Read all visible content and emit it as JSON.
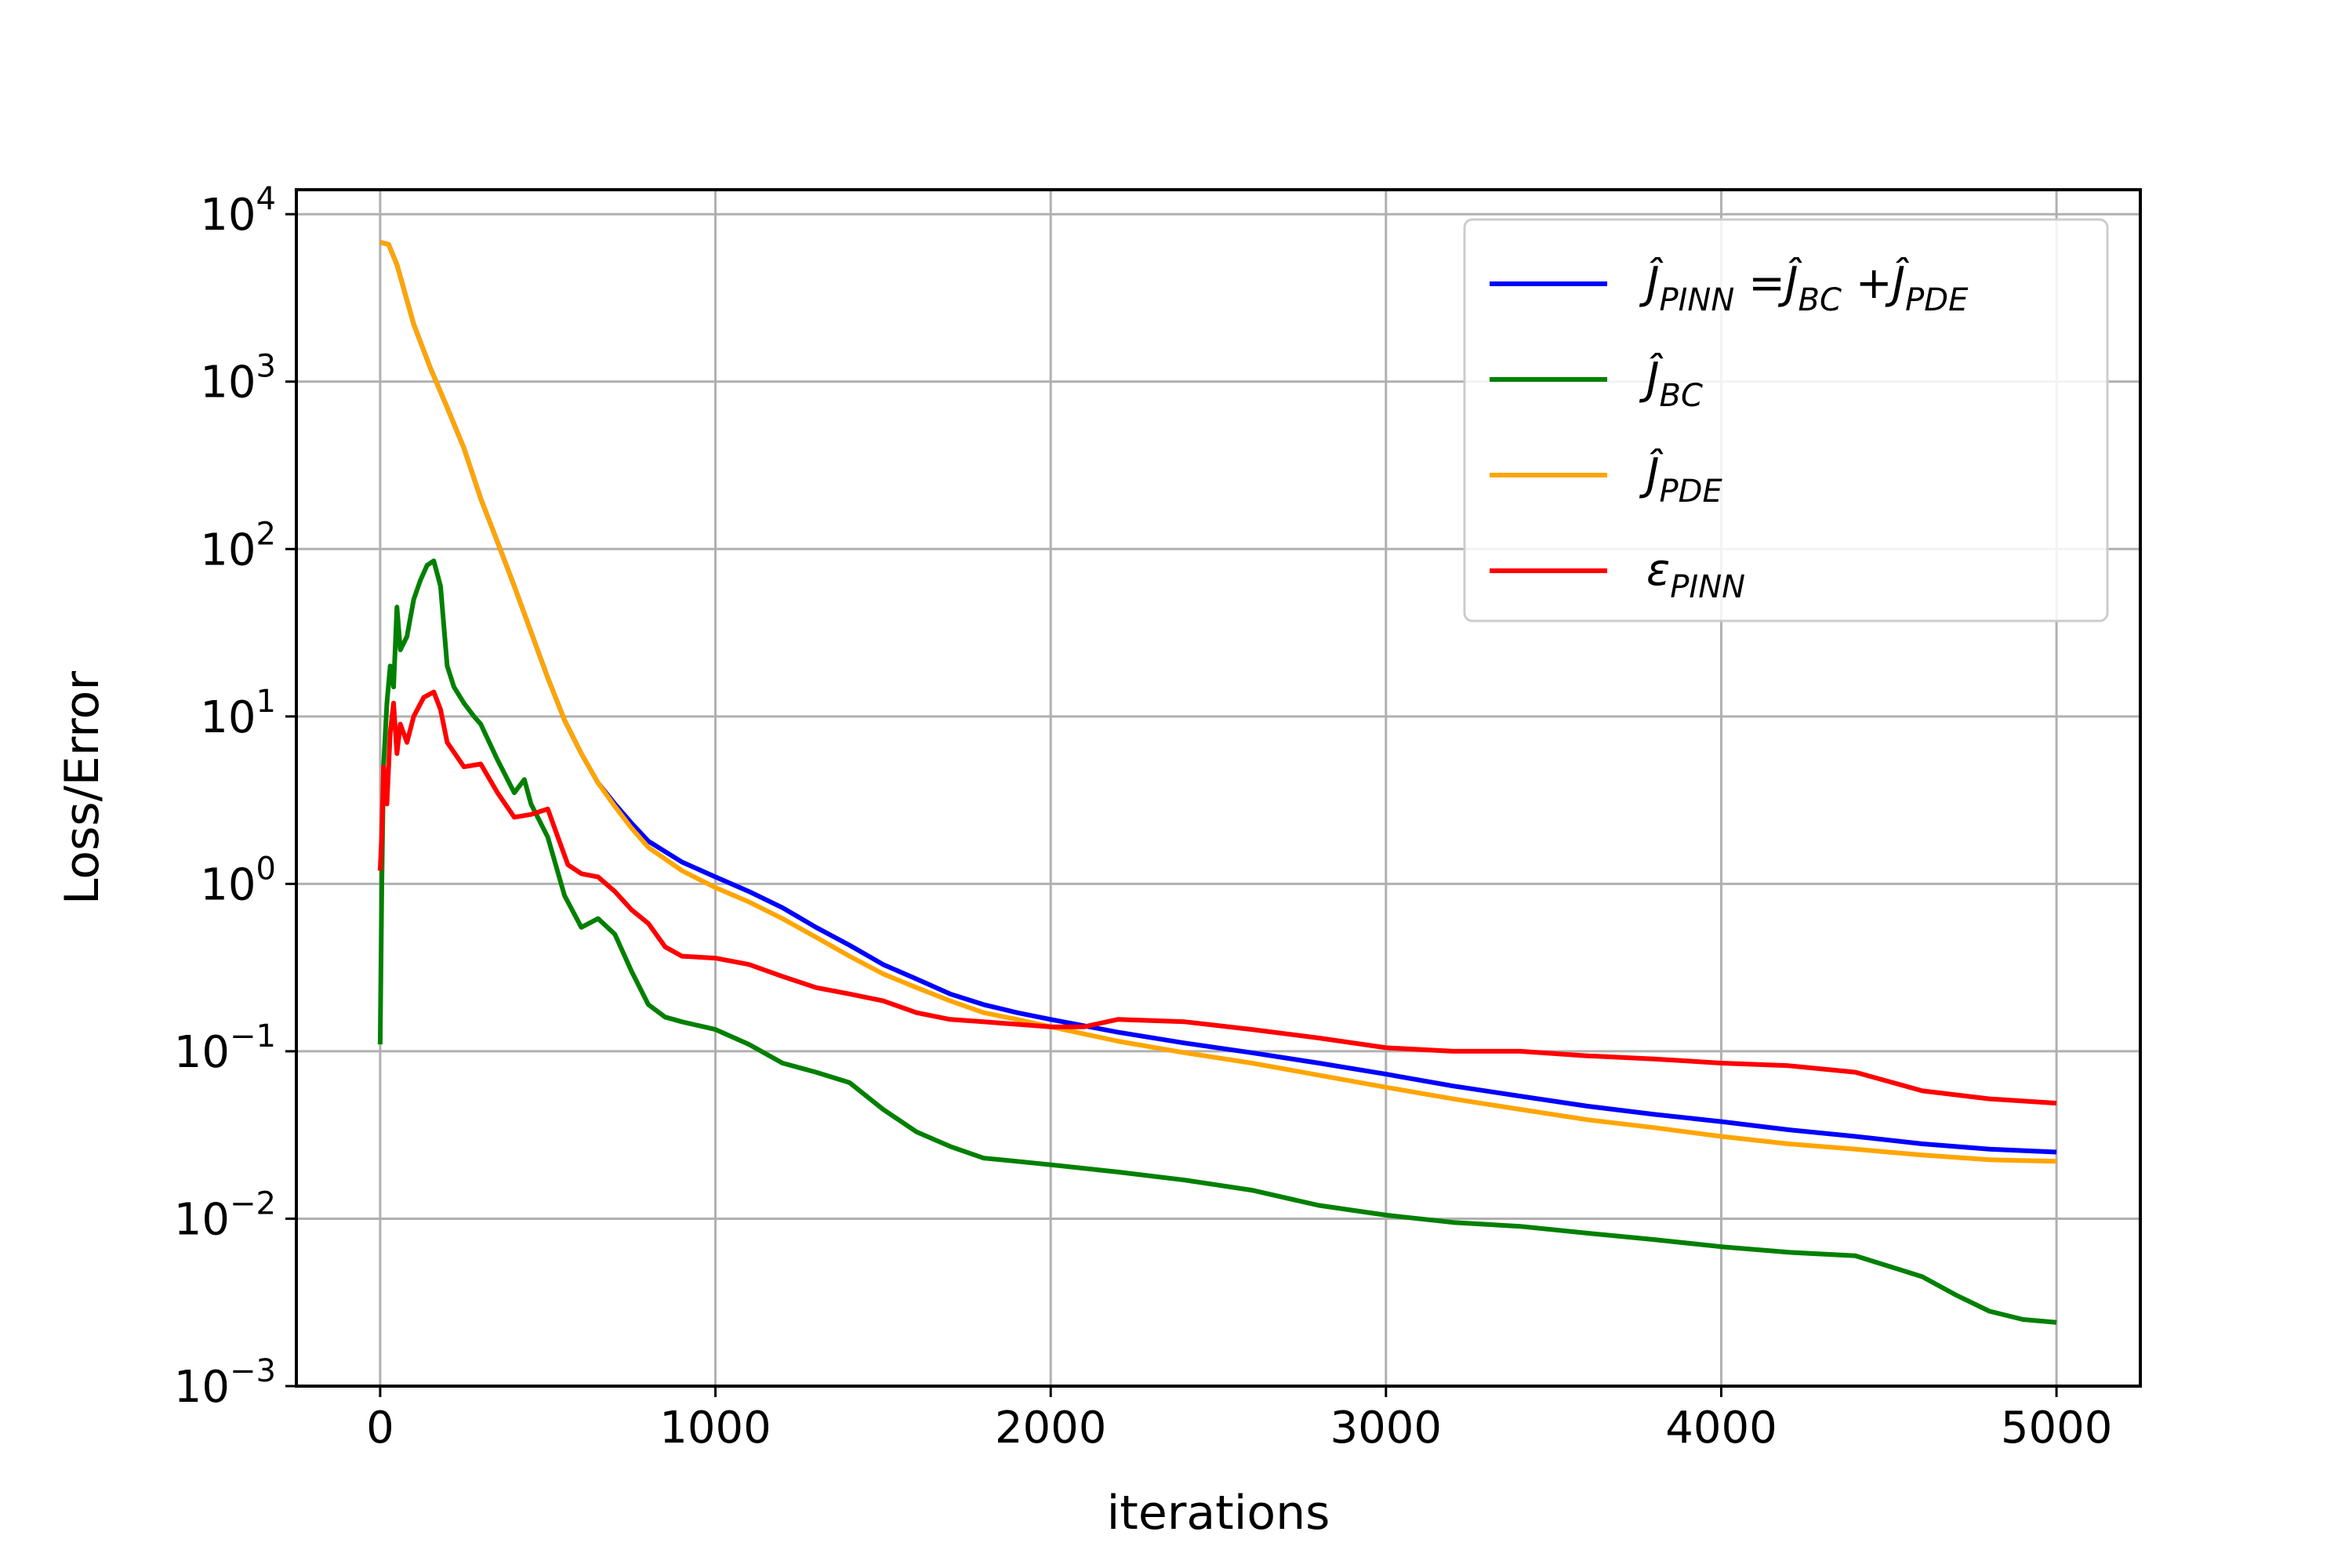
{
  "chart_data": {
    "type": "line",
    "xlabel": "iterations",
    "ylabel": "Loss/Error",
    "xlim": [
      -250,
      5250
    ],
    "ylim": [
      0.001,
      14000
    ],
    "yscale": "log",
    "grid": true,
    "legend_position": "top-right",
    "x_ticks": [
      0,
      1000,
      2000,
      3000,
      4000,
      5000
    ],
    "x_tick_labels": [
      "0",
      "1000",
      "2000",
      "3000",
      "4000",
      "5000"
    ],
    "y_ticks": [
      0.001,
      0.01,
      0.1,
      1,
      10,
      100,
      1000,
      10000
    ],
    "y_tick_labels": [
      {
        "base": "10",
        "exp": "−3"
      },
      {
        "base": "10",
        "exp": "−2"
      },
      {
        "base": "10",
        "exp": "−1"
      },
      {
        "base": "10",
        "exp": "0"
      },
      {
        "base": "10",
        "exp": "1"
      },
      {
        "base": "10",
        "exp": "2"
      },
      {
        "base": "10",
        "exp": "3"
      },
      {
        "base": "10",
        "exp": "4"
      }
    ],
    "series": [
      {
        "name": "Ĵ_PINN = Ĵ_BC + Ĵ_PDE",
        "legend_parts": [
          [
            "Ĵ",
            "PINN"
          ],
          [
            "=Ĵ",
            "BC"
          ],
          [
            "+Ĵ",
            "PDE"
          ]
        ],
        "color": "#0000ff",
        "x": [
          0,
          25,
          50,
          100,
          150,
          200,
          250,
          300,
          350,
          400,
          450,
          500,
          550,
          600,
          650,
          700,
          750,
          800,
          900,
          1000,
          1100,
          1200,
          1300,
          1400,
          1500,
          1600,
          1700,
          1800,
          1900,
          2000,
          2200,
          2400,
          2600,
          2800,
          3000,
          3200,
          3400,
          3600,
          3800,
          4000,
          4200,
          4400,
          4600,
          4800,
          5000
        ],
        "y": [
          6800,
          6600,
          5000,
          2200,
          1200,
          700,
          400,
          200,
          110,
          60,
          32,
          17,
          9.5,
          6,
          4,
          3,
          2.3,
          1.8,
          1.35,
          1.1,
          0.9,
          0.72,
          0.55,
          0.43,
          0.33,
          0.27,
          0.22,
          0.19,
          0.17,
          0.155,
          0.13,
          0.112,
          0.098,
          0.085,
          0.073,
          0.062,
          0.054,
          0.047,
          0.042,
          0.038,
          0.034,
          0.031,
          0.028,
          0.026,
          0.025
        ]
      },
      {
        "name": "Ĵ_BC",
        "legend_parts": [
          [
            "Ĵ",
            "BC"
          ]
        ],
        "color": "#008000",
        "x": [
          0,
          5,
          10,
          20,
          30,
          40,
          50,
          60,
          80,
          100,
          120,
          140,
          160,
          180,
          200,
          220,
          250,
          280,
          300,
          350,
          400,
          430,
          450,
          500,
          550,
          600,
          650,
          700,
          750,
          800,
          850,
          900,
          1000,
          1100,
          1200,
          1300,
          1400,
          1500,
          1600,
          1700,
          1800,
          1900,
          2000,
          2200,
          2400,
          2600,
          2800,
          3000,
          3200,
          3400,
          3600,
          3800,
          4000,
          4200,
          4400,
          4500,
          4600,
          4700,
          4800,
          4900,
          5000
        ],
        "y": [
          0.11,
          1.0,
          5,
          12,
          20,
          15,
          45,
          25,
          30,
          50,
          65,
          80,
          85,
          60,
          20,
          15,
          12,
          10,
          9,
          5.5,
          3.5,
          4.2,
          3.0,
          1.9,
          0.85,
          0.55,
          0.62,
          0.5,
          0.3,
          0.19,
          0.16,
          0.15,
          0.135,
          0.11,
          0.085,
          0.075,
          0.065,
          0.045,
          0.033,
          0.027,
          0.023,
          0.022,
          0.021,
          0.019,
          0.017,
          0.0148,
          0.012,
          0.0105,
          0.0095,
          0.009,
          0.0082,
          0.0075,
          0.0068,
          0.0063,
          0.006,
          0.0052,
          0.0045,
          0.0035,
          0.0028,
          0.0025,
          0.0024
        ]
      },
      {
        "name": "Ĵ_PDE",
        "legend_parts": [
          [
            "Ĵ",
            "PDE"
          ]
        ],
        "color": "#ffa500",
        "x": [
          0,
          25,
          50,
          100,
          150,
          200,
          250,
          300,
          350,
          400,
          450,
          500,
          550,
          600,
          650,
          700,
          750,
          800,
          900,
          1000,
          1100,
          1200,
          1300,
          1400,
          1500,
          1600,
          1700,
          1800,
          1900,
          2000,
          2200,
          2400,
          2600,
          2800,
          3000,
          3200,
          3400,
          3600,
          3800,
          4000,
          4200,
          4400,
          4600,
          4800,
          5000
        ],
        "y": [
          6800,
          6600,
          5000,
          2200,
          1200,
          700,
          400,
          200,
          110,
          60,
          32,
          17,
          9.5,
          6,
          4,
          2.9,
          2.15,
          1.65,
          1.2,
          0.95,
          0.78,
          0.62,
          0.48,
          0.37,
          0.29,
          0.24,
          0.2,
          0.17,
          0.155,
          0.14,
          0.115,
          0.098,
          0.085,
          0.072,
          0.061,
          0.052,
          0.045,
          0.039,
          0.035,
          0.031,
          0.028,
          0.026,
          0.024,
          0.0225,
          0.022
        ]
      },
      {
        "name": "ε_PINN",
        "legend_parts": [
          [
            "ε",
            "PINN"
          ]
        ],
        "color": "#ff0000",
        "x": [
          0,
          5,
          10,
          20,
          30,
          40,
          50,
          60,
          80,
          100,
          130,
          160,
          180,
          200,
          250,
          300,
          350,
          400,
          450,
          500,
          530,
          560,
          600,
          650,
          700,
          750,
          800,
          850,
          900,
          1000,
          1100,
          1200,
          1300,
          1400,
          1500,
          1600,
          1700,
          1800,
          1900,
          2000,
          2100,
          2200,
          2400,
          2600,
          2800,
          3000,
          3200,
          3400,
          3600,
          3800,
          4000,
          4200,
          4400,
          4600,
          4800,
          5000
        ],
        "y": [
          1.2,
          2,
          5,
          3,
          8,
          12,
          6,
          9,
          7,
          10,
          13,
          14,
          11,
          7,
          5,
          5.2,
          3.5,
          2.5,
          2.6,
          2.8,
          1.9,
          1.3,
          1.15,
          1.1,
          0.9,
          0.7,
          0.58,
          0.42,
          0.37,
          0.36,
          0.33,
          0.28,
          0.24,
          0.22,
          0.2,
          0.17,
          0.155,
          0.15,
          0.145,
          0.14,
          0.14,
          0.155,
          0.15,
          0.135,
          0.12,
          0.105,
          0.1,
          0.1,
          0.094,
          0.09,
          0.085,
          0.082,
          0.075,
          0.058,
          0.052,
          0.049
        ]
      }
    ]
  }
}
